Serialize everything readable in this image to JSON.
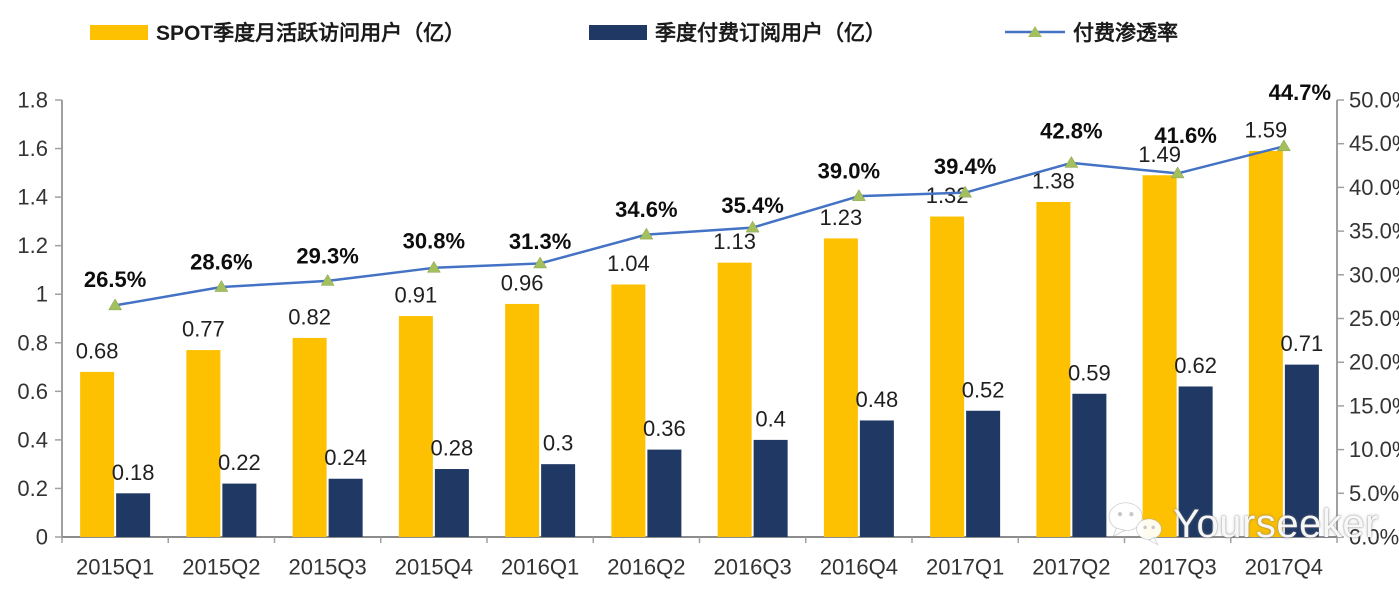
{
  "legend": {
    "items": [
      {
        "label": "SPOT季度月活跃访问用户（亿）",
        "swatch": "bar",
        "color": "#FDC101"
      },
      {
        "label": "季度付费订阅用户（亿）",
        "swatch": "bar",
        "color": "#1F3864"
      },
      {
        "label": "付费渗透率",
        "swatch": "line",
        "color": "#4472C4",
        "marker_color": "#A3BF5E"
      }
    ]
  },
  "watermark": {
    "text": "Yourseeker",
    "icon": "wechat-icon"
  },
  "chart_data": {
    "type": "bar+line",
    "categories": [
      "2015Q1",
      "2015Q2",
      "2015Q3",
      "2015Q4",
      "2016Q1",
      "2016Q2",
      "2016Q3",
      "2016Q4",
      "2017Q1",
      "2017Q2",
      "2017Q3",
      "2017Q4"
    ],
    "series": [
      {
        "name": "SPOT季度月活跃访问用户（亿）",
        "type": "bar",
        "axis": "left",
        "color": "#FDC101",
        "values": [
          0.68,
          0.77,
          0.82,
          0.91,
          0.96,
          1.04,
          1.13,
          1.23,
          1.32,
          1.38,
          1.49,
          1.59
        ],
        "labels": [
          "0.68",
          "0.77",
          "0.82",
          "0.91",
          "0.96",
          "1.04",
          "1.13",
          "1.23",
          "1.32",
          "1.38",
          "1.49",
          "1.59"
        ]
      },
      {
        "name": "季度付费订阅用户（亿）",
        "type": "bar",
        "axis": "left",
        "color": "#1F3864",
        "values": [
          0.18,
          0.22,
          0.24,
          0.28,
          0.3,
          0.36,
          0.4,
          0.48,
          0.52,
          0.59,
          0.62,
          0.71
        ],
        "labels": [
          "0.18",
          "0.22",
          "0.24",
          "0.28",
          "0.3",
          "0.36",
          "0.4",
          "0.48",
          "0.52",
          "0.59",
          "0.62",
          "0.71"
        ]
      },
      {
        "name": "付费渗透率",
        "type": "line",
        "axis": "right",
        "color": "#4472C4",
        "marker": "triangle",
        "marker_color": "#A3BF5E",
        "values": [
          26.5,
          28.6,
          29.3,
          30.8,
          31.3,
          34.6,
          35.4,
          39.0,
          39.4,
          42.8,
          41.6,
          44.7
        ],
        "labels": [
          "26.5%",
          "28.6%",
          "29.3%",
          "30.8%",
          "31.3%",
          "34.6%",
          "35.4%",
          "39.0%",
          "39.4%",
          "42.8%",
          "41.6%",
          "44.7%"
        ]
      }
    ],
    "left_axis": {
      "min": 0,
      "max": 1.8,
      "step": 0.2,
      "ticks": [
        "0",
        "0.2",
        "0.4",
        "0.6",
        "0.8",
        "1",
        "1.2",
        "1.4",
        "1.6",
        "1.8"
      ]
    },
    "right_axis": {
      "min": 0,
      "max": 50,
      "step": 5,
      "ticks": [
        "0.0%",
        "5.0%",
        "10.0%",
        "15.0%",
        "20.0%",
        "25.0%",
        "30.0%",
        "35.0%",
        "40.0%",
        "45.0%",
        "50.0%"
      ]
    },
    "grid": false,
    "legend_position": "top",
    "axis_color": "#A0A0A0",
    "pct_label_dy": [
      -26,
      -25,
      -25,
      -27,
      -22,
      -25,
      -22,
      -25,
      -26,
      -32,
      -38,
      -54
    ],
    "pct_label_dx": [
      0,
      0,
      0,
      0,
      0,
      0,
      0,
      -10,
      0,
      0,
      8,
      16
    ]
  }
}
